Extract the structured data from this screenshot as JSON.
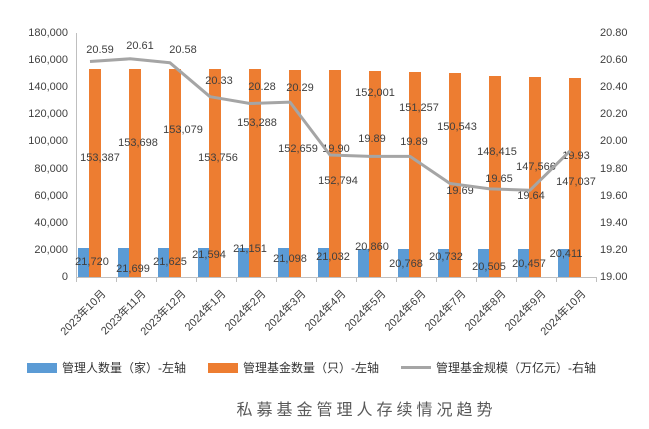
{
  "chart_data": {
    "type": "combo-bar-line",
    "title": "私募基金管理人存续情况趋势",
    "categories": [
      "2023年10月",
      "2023年11月",
      "2023年12月",
      "2024年1月",
      "2024年2月",
      "2024年3月",
      "2024年4月",
      "2024年5月",
      "2024年6月",
      "2024年7月",
      "2024年8月",
      "2024年9月",
      "2024年10月"
    ],
    "series": [
      {
        "name": "管理人数量（家）-左轴",
        "type": "bar",
        "axis": "left",
        "color": "#5B9BD5",
        "values": [
          21720,
          21699,
          21625,
          21594,
          21151,
          21098,
          21032,
          20860,
          20768,
          20732,
          20505,
          20457,
          20411
        ]
      },
      {
        "name": "管理基金数量（只）-左轴",
        "type": "bar",
        "axis": "left",
        "color": "#ED7D31",
        "values": [
          153387,
          153698,
          153079,
          153756,
          153288,
          152659,
          152794,
          152001,
          151257,
          150543,
          148415,
          147566,
          147037
        ]
      },
      {
        "name": "管理基金规模（万亿元）-右轴",
        "type": "line",
        "axis": "right",
        "color": "#A5A5A5",
        "values": [
          20.59,
          20.61,
          20.58,
          20.33,
          20.28,
          20.29,
          19.9,
          19.89,
          19.89,
          19.69,
          19.65,
          19.64,
          19.93
        ]
      }
    ],
    "left_axis": {
      "min": 0,
      "max": 180000,
      "step": 20000
    },
    "right_axis": {
      "min": 19.0,
      "max": 20.8,
      "step": 0.2
    },
    "legend_position": "bottom",
    "grid": false,
    "colors": {
      "bar1": "#5B9BD5",
      "bar2": "#ED7D31",
      "line": "#A5A5A5",
      "axis": "#BFBFBF",
      "label": "#3F3F3F"
    }
  }
}
